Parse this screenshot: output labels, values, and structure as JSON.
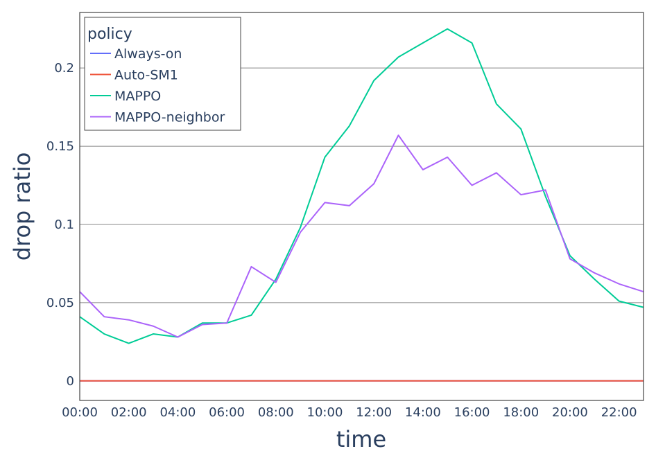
{
  "chart_data": {
    "type": "line",
    "xlabel": "time",
    "ylabel": "drop ratio",
    "x_ticks": [
      "00:00",
      "02:00",
      "04:00",
      "06:00",
      "08:00",
      "10:00",
      "12:00",
      "14:00",
      "16:00",
      "18:00",
      "20:00",
      "22:00"
    ],
    "x_range_hours": [
      0,
      23
    ],
    "y_ticks": [
      {
        "value": 0,
        "label": "0"
      },
      {
        "value": 0.05,
        "label": "0.05"
      },
      {
        "value": 0.1,
        "label": "0.1"
      },
      {
        "value": 0.15,
        "label": "0.15"
      },
      {
        "value": 0.2,
        "label": "0.2"
      }
    ],
    "ylim": [
      -0.0125,
      0.2355
    ],
    "grid": true,
    "legend": {
      "title": "policy",
      "position": "top-left"
    },
    "x": [
      "00:00",
      "01:00",
      "02:00",
      "03:00",
      "04:00",
      "05:00",
      "06:00",
      "07:00",
      "08:00",
      "09:00",
      "10:00",
      "11:00",
      "12:00",
      "13:00",
      "14:00",
      "15:00",
      "16:00",
      "17:00",
      "18:00",
      "19:00",
      "20:00",
      "21:00",
      "22:00",
      "23:00"
    ],
    "series": [
      {
        "name": "Always-on",
        "color": "#636efa",
        "values": [
          0,
          0,
          0,
          0,
          0,
          0,
          0,
          0,
          0,
          0,
          0,
          0,
          0,
          0,
          0,
          0,
          0,
          0,
          0,
          0,
          0,
          0,
          0,
          0
        ]
      },
      {
        "name": "Auto-SM1",
        "color": "#ef553b",
        "values": [
          0,
          0,
          0,
          0,
          0,
          0,
          0,
          0,
          0,
          0,
          0,
          0,
          0,
          0,
          0,
          0,
          0,
          0,
          0,
          0,
          0,
          0,
          0,
          0
        ]
      },
      {
        "name": "MAPPO",
        "color": "#00cc96",
        "values": [
          0.041,
          0.03,
          0.024,
          0.03,
          0.028,
          0.037,
          0.037,
          0.042,
          0.065,
          0.098,
          0.143,
          0.163,
          0.192,
          0.207,
          0.216,
          0.225,
          0.216,
          0.177,
          0.161,
          0.118,
          0.08,
          0.065,
          0.051,
          0.047
        ]
      },
      {
        "name": "MAPPO-neighbor",
        "color": "#ab63fa",
        "values": [
          0.057,
          0.041,
          0.039,
          0.035,
          0.028,
          0.036,
          0.037,
          0.073,
          0.063,
          0.095,
          0.114,
          0.112,
          0.126,
          0.157,
          0.135,
          0.143,
          0.125,
          0.133,
          0.119,
          0.122,
          0.078,
          0.069,
          0.062,
          0.057
        ]
      }
    ]
  }
}
